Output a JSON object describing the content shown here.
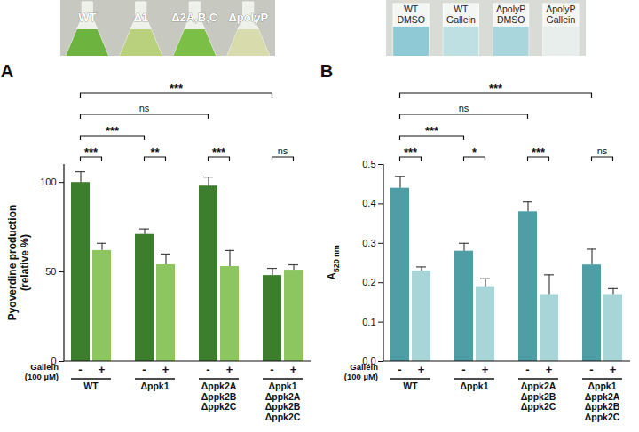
{
  "chart_data": [
    {
      "type": "bar",
      "title": "A",
      "ylabel": "Pyoverdine production\n(relative %)",
      "categories": [
        "WT",
        "Δppk1",
        "Δppk2A\nΔppk2B\nΔppk2C",
        "Δppk1\nΔppk2A\nΔppk2B\nΔppk2C"
      ],
      "series_label": "Gallein\n(100 µM)",
      "series": [
        {
          "name": "-",
          "color": "#3c7d2e",
          "values": [
            100,
            71,
            98,
            48
          ],
          "errors": [
            6,
            3,
            5,
            4
          ]
        },
        {
          "name": "+",
          "color": "#8dc560",
          "values": [
            62,
            54,
            53,
            51
          ],
          "errors": [
            4,
            6,
            9,
            3
          ]
        }
      ],
      "ylim": [
        0,
        110
      ],
      "yticks": [
        0,
        50,
        100
      ],
      "comparisons": [
        {
          "bars": [
            [
              0,
              0
            ],
            [
              0,
              1
            ]
          ],
          "label": "***"
        },
        {
          "bars": [
            [
              1,
              0
            ],
            [
              1,
              1
            ]
          ],
          "label": "**"
        },
        {
          "bars": [
            [
              2,
              0
            ],
            [
              2,
              1
            ]
          ],
          "label": "***"
        },
        {
          "bars": [
            [
              3,
              0
            ],
            [
              3,
              1
            ]
          ],
          "label": "ns"
        },
        {
          "bars": [
            [
              0,
              0
            ],
            [
              1,
              0
            ]
          ],
          "label": "***"
        },
        {
          "bars": [
            [
              0,
              0
            ],
            [
              2,
              0
            ]
          ],
          "label": "ns"
        },
        {
          "bars": [
            [
              0,
              0
            ],
            [
              3,
              0
            ]
          ],
          "label": "***"
        }
      ]
    },
    {
      "type": "bar",
      "title": "B",
      "ylabel": "A",
      "ylabel_sub": "520 nm",
      "categories": [
        "WT",
        "Δppk1",
        "Δppk2A\nΔppk2B\nΔppk2C",
        "Δppk1\nΔppk2A\nΔppk2B\nΔppk2C"
      ],
      "series_label": "Gallein\n(100 µM)",
      "series": [
        {
          "name": "-",
          "color": "#4f9ea6",
          "values": [
            0.44,
            0.28,
            0.38,
            0.245
          ],
          "errors": [
            0.03,
            0.02,
            0.025,
            0.04
          ]
        },
        {
          "name": "+",
          "color": "#a8d5d8",
          "values": [
            0.23,
            0.19,
            0.17,
            0.17
          ],
          "errors": [
            0.01,
            0.02,
            0.05,
            0.015
          ]
        }
      ],
      "ylim": [
        0,
        0.5
      ],
      "yticks": [
        {
          "value": 0,
          "label": "0.0"
        },
        0.1,
        0.2,
        0.3,
        0.4,
        0.5
      ],
      "comparisons": [
        {
          "bars": [
            [
              0,
              0
            ],
            [
              0,
              1
            ]
          ],
          "label": "***"
        },
        {
          "bars": [
            [
              1,
              0
            ],
            [
              1,
              1
            ]
          ],
          "label": "*"
        },
        {
          "bars": [
            [
              2,
              0
            ],
            [
              2,
              1
            ]
          ],
          "label": "***"
        },
        {
          "bars": [
            [
              3,
              0
            ],
            [
              3,
              1
            ]
          ],
          "label": "ns"
        },
        {
          "bars": [
            [
              0,
              0
            ],
            [
              1,
              0
            ]
          ],
          "label": "***"
        },
        {
          "bars": [
            [
              0,
              0
            ],
            [
              2,
              0
            ]
          ],
          "label": "ns"
        },
        {
          "bars": [
            [
              0,
              0
            ],
            [
              3,
              0
            ]
          ],
          "label": "***"
        }
      ]
    }
  ],
  "photos": [
    {
      "labels": [
        "WT",
        "Δ1",
        "Δ2A,B,C",
        "ΔpolyP"
      ]
    },
    {
      "labels": [
        "WT\nDMSO",
        "WT\nGallein",
        "ΔpolyP\nDMSO",
        "ΔpolyP\nGallein"
      ]
    }
  ]
}
